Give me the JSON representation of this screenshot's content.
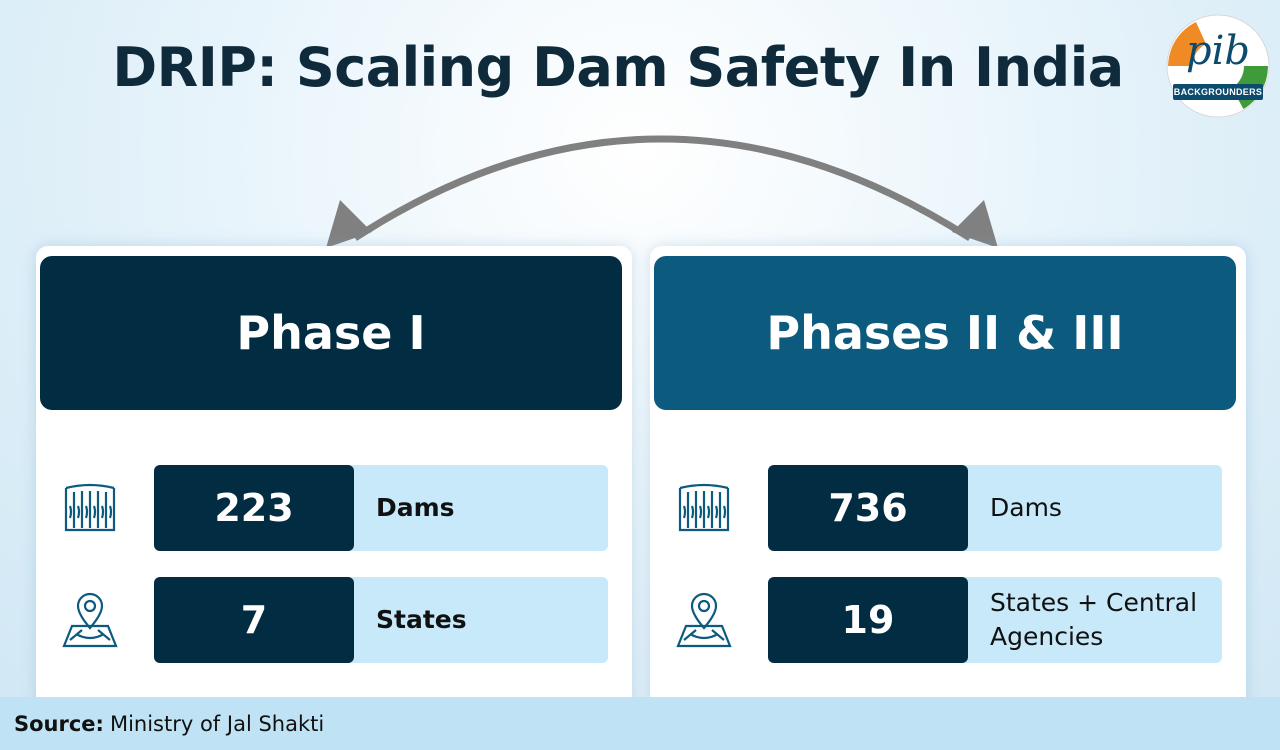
{
  "header": {
    "title": "DRIP: Scaling Dam Safety In India"
  },
  "logo": {
    "name": "pib",
    "label": "BACKGROUNDERS",
    "icon": "pib-logo-icon"
  },
  "phases": [
    {
      "title": "Phase I",
      "color": "#022c42",
      "stats": [
        {
          "icon": "dam-icon",
          "value": "223",
          "label": "Dams"
        },
        {
          "icon": "location-map-icon",
          "value": "7",
          "label": "States"
        }
      ]
    },
    {
      "title": "Phases II & III",
      "color": "#0c5a7e",
      "stats": [
        {
          "icon": "dam-icon",
          "value": "736",
          "label": "Dams"
        },
        {
          "icon": "location-map-icon",
          "value": "19",
          "label": "States + Central Agencies"
        }
      ]
    }
  ],
  "footer": {
    "source_key": "Source:",
    "source_value": "Ministry of Jal Shakti"
  }
}
